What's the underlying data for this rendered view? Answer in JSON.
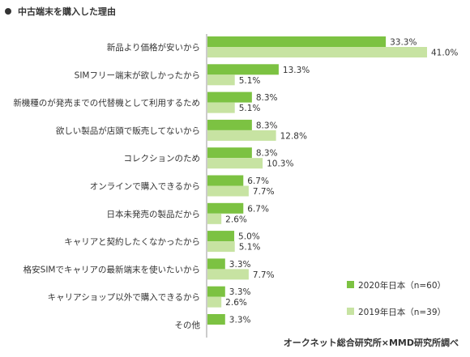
{
  "header": {
    "title": "中古端末を購入した理由"
  },
  "source": "オークネット総合研究所×MMD研究所調べ",
  "colors": {
    "s2020": "#7cc242",
    "s2019": "#c7e3a2",
    "axis": "#999999",
    "text": "#333333"
  },
  "chart_data": {
    "type": "bar",
    "orientation": "horizontal",
    "title": "中古端末を購入した理由",
    "categories": [
      "新品より価格が安いから",
      "SIMフリー端末が欲しかったから",
      "新機種のが発売までの代替機として利用するため",
      "欲しい製品が店頭で販売してないから",
      "コレクションのため",
      "オンラインで購入できるから",
      "日本未発売の製品だから",
      "キャリアと契約したくなかったから",
      "格安SIMでキャリアの最新端末を使いたいから",
      "キャリアショップ以外で購入できるから",
      "その他"
    ],
    "series": [
      {
        "name": "2020年日本（n=60）",
        "values": [
          33.3,
          13.3,
          8.3,
          8.3,
          8.3,
          6.7,
          6.7,
          5.0,
          3.3,
          3.3,
          3.3
        ],
        "labels": [
          "33.3%",
          "13.3%",
          "8.3%",
          "8.3%",
          "8.3%",
          "6.7%",
          "6.7%",
          "5.0%",
          "3.3%",
          "3.3%",
          "3.3%"
        ]
      },
      {
        "name": "2019年日本（n=39）",
        "values": [
          41.0,
          5.1,
          5.1,
          12.8,
          10.3,
          7.7,
          2.6,
          5.1,
          7.7,
          2.6,
          null
        ],
        "labels": [
          "41.0%",
          "5.1%",
          "5.1%",
          "12.8%",
          "10.3%",
          "7.7%",
          "2.6%",
          "5.1%",
          "7.7%",
          "2.6%",
          null
        ]
      }
    ],
    "xlim": [
      0,
      41.0
    ],
    "legend": "bottom-right",
    "grid": false
  }
}
